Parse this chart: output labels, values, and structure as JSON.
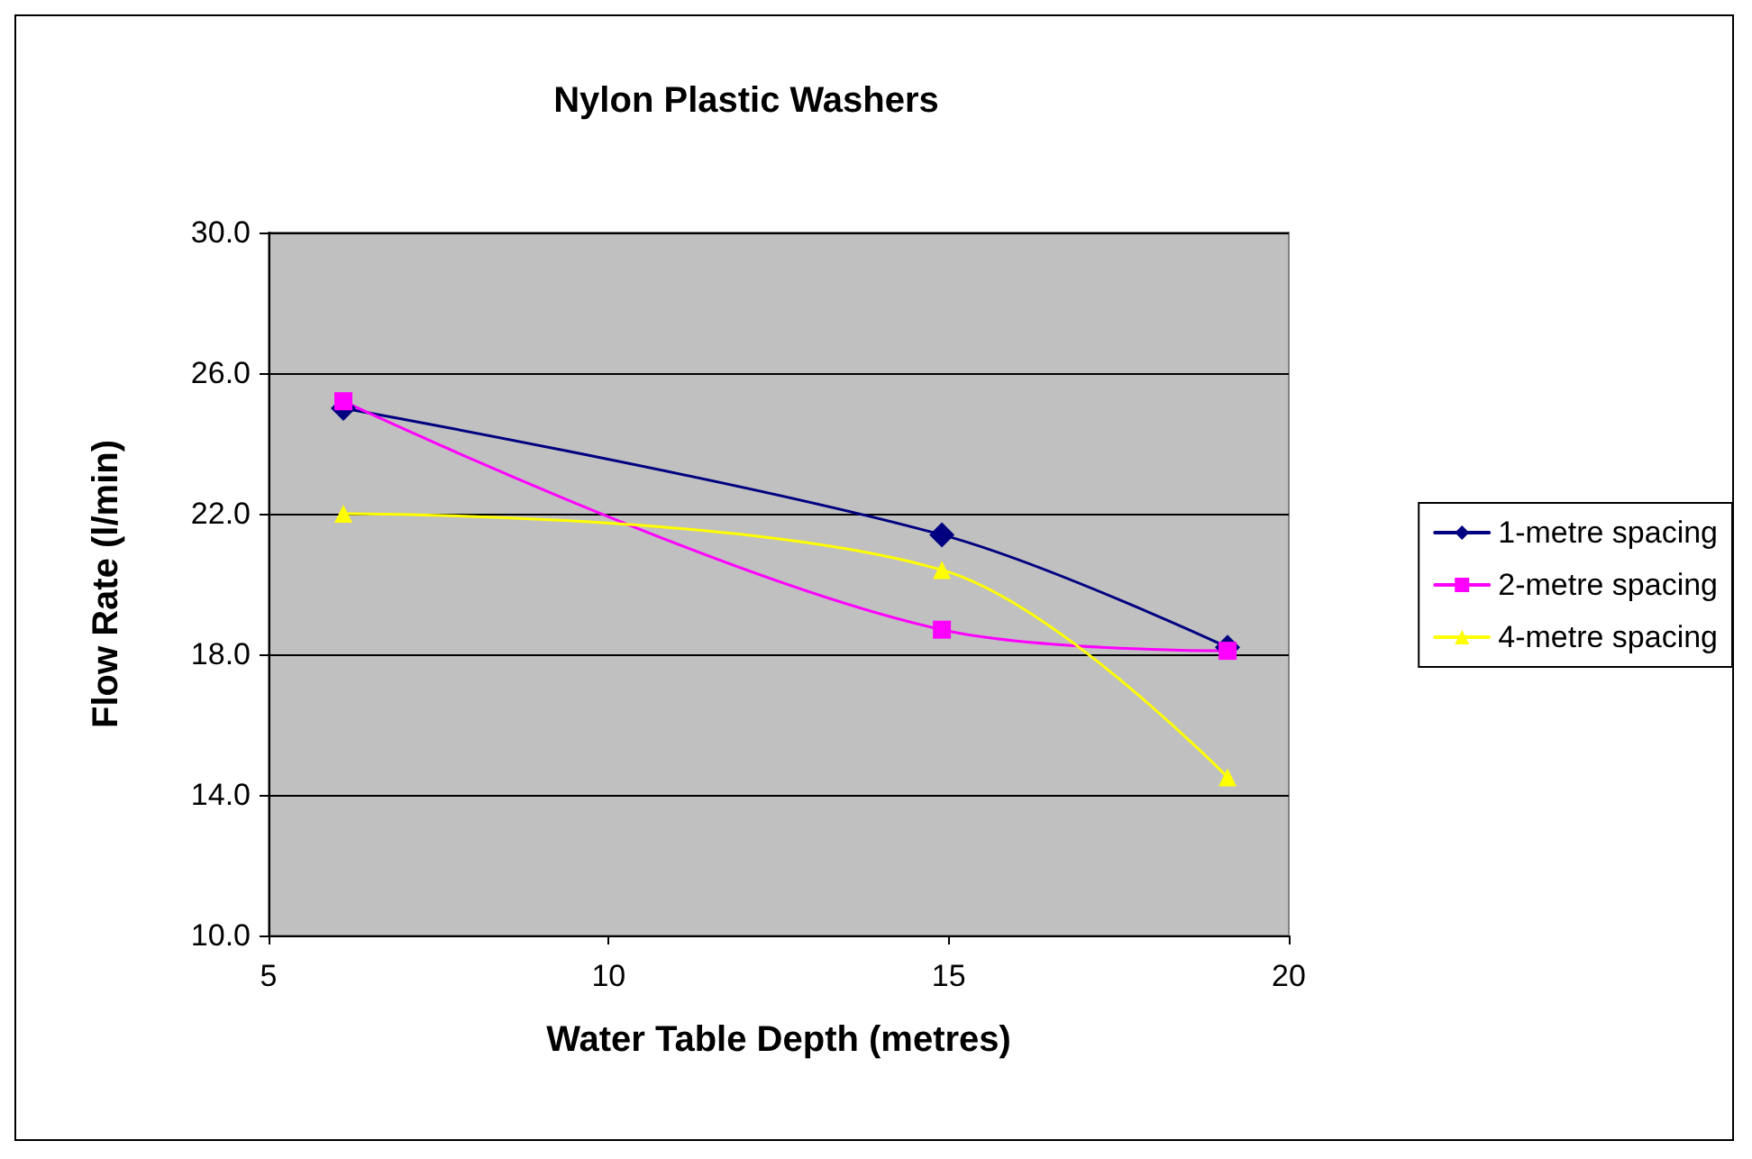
{
  "chart_data": {
    "type": "line",
    "title": "Nylon Plastic Washers",
    "xlabel": "Water Table Depth (metres)",
    "ylabel": "Flow Rate (l/min)",
    "x": [
      6.1,
      14.9,
      19.1
    ],
    "series": [
      {
        "name": "1-metre spacing",
        "color": "#000080",
        "marker": "diamond",
        "values": [
          25.0,
          21.4,
          18.2
        ]
      },
      {
        "name": "2-metre spacing",
        "color": "#ff00ff",
        "marker": "square",
        "values": [
          25.2,
          18.7,
          18.1
        ]
      },
      {
        "name": "4-metre spacing",
        "color": "#ffff00",
        "marker": "triangle",
        "values": [
          22.0,
          20.4,
          14.5
        ]
      }
    ],
    "xlim": [
      5,
      20
    ],
    "xticks": [
      5,
      10,
      15,
      20
    ],
    "ylim": [
      10,
      30
    ],
    "yticks": [
      {
        "value": 10,
        "label": "10.0"
      },
      {
        "value": 14,
        "label": "14.0"
      },
      {
        "value": 18,
        "label": "18.0"
      },
      {
        "value": 22,
        "label": "22.0"
      },
      {
        "value": 26,
        "label": "26.0"
      },
      {
        "value": 30,
        "label": "30.0"
      }
    ],
    "grid": "y",
    "legend": "right",
    "line_style": "solid"
  }
}
